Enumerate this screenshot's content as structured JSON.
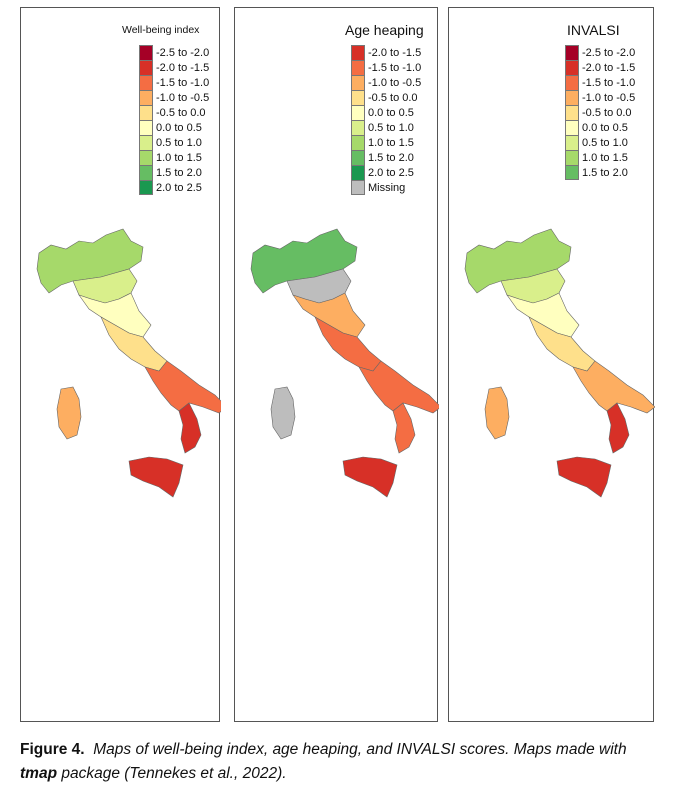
{
  "panels": [
    {
      "title": "Well-being index",
      "legend": [
        {
          "label": "-2.5 to -2.0",
          "color": "#a50026"
        },
        {
          "label": "-2.0 to -1.5",
          "color": "#d73027"
        },
        {
          "label": "-1.5 to -1.0",
          "color": "#f46d43"
        },
        {
          "label": "-1.0 to -0.5",
          "color": "#fdae61"
        },
        {
          "label": "-0.5 to 0.0",
          "color": "#fee08b"
        },
        {
          "label": "0.0 to 0.5",
          "color": "#ffffbf"
        },
        {
          "label": "0.5 to 1.0",
          "color": "#d9ef8b"
        },
        {
          "label": "1.0 to 1.5",
          "color": "#a6d96a"
        },
        {
          "label": "1.5 to 2.0",
          "color": "#66bd63"
        },
        {
          "label": "2.0 to 2.5",
          "color": "#1a9850"
        }
      ]
    },
    {
      "title": "Age heaping",
      "legend": [
        {
          "label": "-2.0 to -1.5",
          "color": "#d73027"
        },
        {
          "label": "-1.5 to -1.0",
          "color": "#f46d43"
        },
        {
          "label": "-1.0 to -0.5",
          "color": "#fdae61"
        },
        {
          "label": "-0.5 to 0.0",
          "color": "#fee08b"
        },
        {
          "label": "0.0 to 0.5",
          "color": "#ffffbf"
        },
        {
          "label": "0.5 to 1.0",
          "color": "#d9ef8b"
        },
        {
          "label": "1.0 to 1.5",
          "color": "#a6d96a"
        },
        {
          "label": "1.5 to 2.0",
          "color": "#66bd63"
        },
        {
          "label": "2.0 to 2.5",
          "color": "#1a9850"
        },
        {
          "label": "Missing",
          "color": "#bdbdbd"
        }
      ]
    },
    {
      "title": "INVALSI",
      "legend": [
        {
          "label": "-2.5 to -2.0",
          "color": "#a50026"
        },
        {
          "label": "-2.0 to -1.5",
          "color": "#d73027"
        },
        {
          "label": "-1.5 to -1.0",
          "color": "#f46d43"
        },
        {
          "label": "-1.0 to -0.5",
          "color": "#fdae61"
        },
        {
          "label": "-0.5 to 0.0",
          "color": "#fee08b"
        },
        {
          "label": "0.0 to 0.5",
          "color": "#ffffbf"
        },
        {
          "label": "0.5 to 1.0",
          "color": "#d9ef8b"
        },
        {
          "label": "1.0 to 1.5",
          "color": "#a6d96a"
        },
        {
          "label": "1.5 to 2.0",
          "color": "#66bd63"
        }
      ]
    }
  ],
  "caption": {
    "figure": "Figure 4.",
    "text_before": "Maps of well-being index, age heaping, and INVALSI scores. Maps made with",
    "package": "tmap",
    "text_after": "package (Tennekes et al., 2022)."
  }
}
